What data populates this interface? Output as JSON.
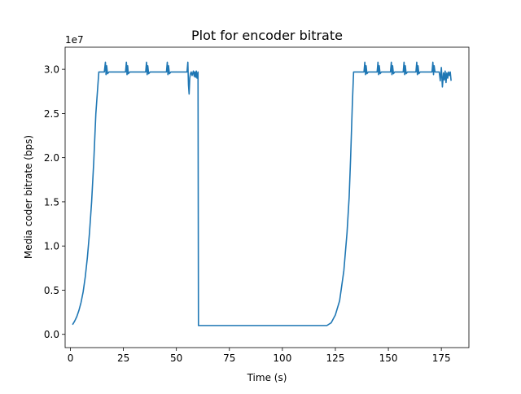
{
  "chart_data": {
    "type": "line",
    "title": "Plot for encoder bitrate",
    "xlabel": "Time (s)",
    "ylabel": "Media coder bitrate (bps)",
    "y_offset_label": "1e7",
    "y_multiplier": 10000000,
    "xlim": [
      -2.5,
      188
    ],
    "ylim": [
      -0.15,
      3.25
    ],
    "x_ticks": [
      {
        "value": 0,
        "label": "0"
      },
      {
        "value": 25,
        "label": "25"
      },
      {
        "value": 50,
        "label": "50"
      },
      {
        "value": 75,
        "label": "75"
      },
      {
        "value": 100,
        "label": "100"
      },
      {
        "value": 125,
        "label": "125"
      },
      {
        "value": 150,
        "label": "150"
      },
      {
        "value": 175,
        "label": "175"
      }
    ],
    "y_ticks": [
      {
        "value": 0.0,
        "label": "0.0"
      },
      {
        "value": 0.5,
        "label": "0.5"
      },
      {
        "value": 1.0,
        "label": "1.0"
      },
      {
        "value": 1.5,
        "label": "1.5"
      },
      {
        "value": 2.0,
        "label": "2.0"
      },
      {
        "value": 2.5,
        "label": "2.5"
      },
      {
        "value": 3.0,
        "label": "3.0"
      }
    ],
    "grid": false,
    "legend": "none",
    "line_color": "#1f77b4",
    "series": [
      {
        "x": [
          1,
          2,
          3,
          4,
          5,
          6,
          7,
          8,
          9,
          10,
          11,
          12,
          13.4,
          16,
          16.5,
          16.8,
          17.1,
          17.5,
          18.2,
          26,
          26.4,
          26.7,
          27.0,
          27.3,
          28,
          35.5,
          35.9,
          36.2,
          36.5,
          36.9,
          37.6,
          45.3,
          45.7,
          46.0,
          46.3,
          46.7,
          47.4,
          55,
          55.4,
          55.7,
          56.0,
          56.3,
          56.6,
          57.0,
          57.4,
          58,
          58.4,
          58.7,
          59.0,
          59.4,
          59.7,
          60.2,
          60.4,
          61,
          70,
          80,
          90,
          100,
          110,
          119,
          121,
          123,
          125,
          127,
          129,
          130.5,
          131.5,
          132.2,
          133,
          133.6,
          138.5,
          138.9,
          139.2,
          139.5,
          139.9,
          140.5,
          144.7,
          145.1,
          145.4,
          145.7,
          146.1,
          146.7,
          151,
          151.4,
          151.7,
          152.0,
          152.4,
          153,
          157,
          157.4,
          157.7,
          158.0,
          158.4,
          159,
          163,
          163.4,
          163.7,
          164.0,
          164.4,
          165,
          170.6,
          171.0,
          171.3,
          171.6,
          172,
          174,
          174.5,
          175,
          175.5,
          176,
          176.4,
          176.8,
          177.2,
          177.6,
          178,
          178.4,
          178.8,
          179.2,
          179.6
        ],
        "y": [
          0.11,
          0.15,
          0.2,
          0.27,
          0.36,
          0.48,
          0.65,
          0.87,
          1.15,
          1.5,
          1.95,
          2.5,
          2.97,
          2.97,
          3.08,
          2.94,
          3.04,
          2.95,
          2.97,
          2.97,
          3.08,
          2.94,
          3.04,
          2.95,
          2.97,
          2.97,
          3.08,
          2.94,
          3.04,
          2.95,
          2.97,
          2.97,
          3.08,
          2.94,
          3.04,
          2.95,
          2.97,
          2.97,
          3.08,
          2.82,
          2.72,
          2.9,
          2.95,
          2.97,
          2.93,
          2.98,
          2.92,
          2.97,
          2.91,
          2.98,
          2.9,
          2.97,
          0.1,
          0.1,
          0.1,
          0.1,
          0.1,
          0.1,
          0.1,
          0.1,
          0.1,
          0.13,
          0.22,
          0.38,
          0.72,
          1.15,
          1.55,
          2.0,
          2.6,
          2.97,
          2.97,
          3.08,
          2.94,
          3.04,
          2.95,
          2.97,
          2.97,
          3.08,
          2.94,
          3.04,
          2.95,
          2.97,
          2.97,
          3.08,
          2.94,
          3.04,
          2.95,
          2.97,
          2.97,
          3.08,
          2.94,
          3.04,
          2.95,
          2.97,
          2.97,
          3.08,
          2.94,
          3.04,
          2.95,
          2.97,
          2.97,
          3.08,
          2.94,
          3.04,
          2.97,
          2.97,
          2.87,
          3.02,
          2.8,
          2.96,
          2.88,
          2.98,
          2.85,
          2.96,
          2.9,
          2.97,
          2.93,
          2.97,
          2.87
        ]
      }
    ]
  }
}
